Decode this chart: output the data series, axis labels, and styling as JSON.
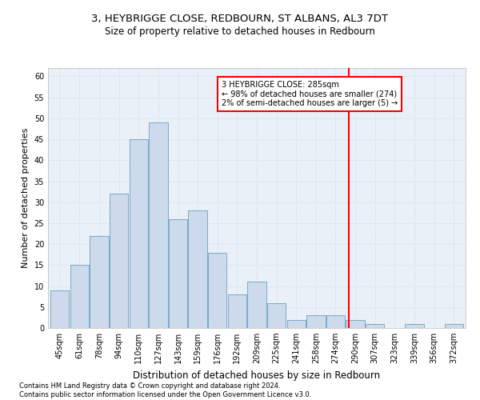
{
  "title": "3, HEYBRIGGE CLOSE, REDBOURN, ST ALBANS, AL3 7DT",
  "subtitle": "Size of property relative to detached houses in Redbourn",
  "xlabel": "Distribution of detached houses by size in Redbourn",
  "ylabel": "Number of detached properties",
  "bar_labels": [
    "45sqm",
    "61sqm",
    "78sqm",
    "94sqm",
    "110sqm",
    "127sqm",
    "143sqm",
    "159sqm",
    "176sqm",
    "192sqm",
    "209sqm",
    "225sqm",
    "241sqm",
    "258sqm",
    "274sqm",
    "290sqm",
    "307sqm",
    "323sqm",
    "339sqm",
    "356sqm",
    "372sqm"
  ],
  "bar_heights": [
    9,
    15,
    22,
    32,
    45,
    49,
    26,
    28,
    18,
    8,
    11,
    6,
    2,
    3,
    3,
    2,
    1,
    0,
    1,
    0,
    1
  ],
  "bar_color": "#ccdaeb",
  "bar_edge_color": "#7aaac8",
  "grid_color": "#dce8f0",
  "background_color": "#eaf0f8",
  "vline_color": "red",
  "annotation_text": "3 HEYBRIGGE CLOSE: 285sqm\n← 98% of detached houses are smaller (274)\n2% of semi-detached houses are larger (5) →",
  "annotation_box_color": "white",
  "annotation_box_edge": "red",
  "footer_text": "Contains HM Land Registry data © Crown copyright and database right 2024.\nContains public sector information licensed under the Open Government Licence v3.0.",
  "ylim": [
    0,
    62
  ],
  "yticks": [
    0,
    5,
    10,
    15,
    20,
    25,
    30,
    35,
    40,
    45,
    50,
    55,
    60
  ],
  "title_fontsize": 9.5,
  "subtitle_fontsize": 8.5,
  "ylabel_fontsize": 8,
  "xlabel_fontsize": 8.5,
  "tick_fontsize": 7,
  "annot_fontsize": 7,
  "footer_fontsize": 6
}
